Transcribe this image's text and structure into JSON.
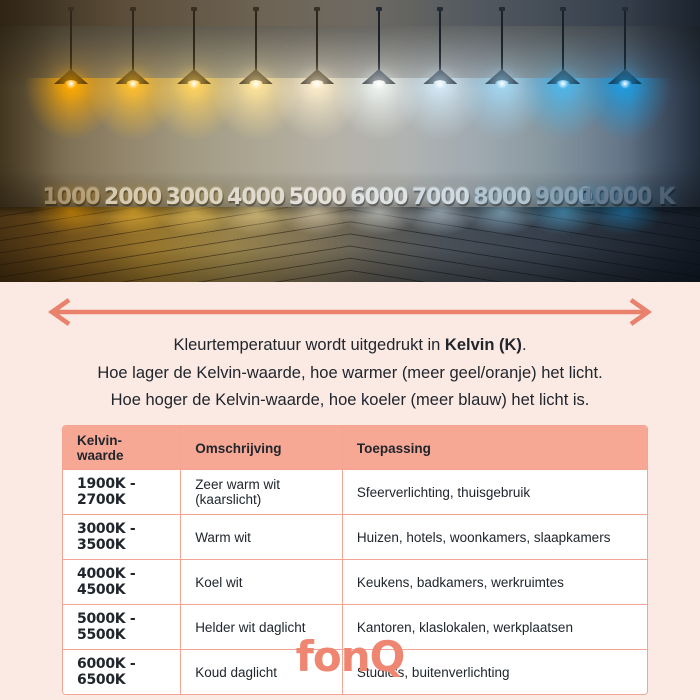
{
  "colors": {
    "background_pink": "#fbe9e4",
    "coral": "#e9816c",
    "salmon_header": "#f6a895",
    "table_border": "#f3a492",
    "text_dark": "#20262c",
    "logo_coral": "#ee8672"
  },
  "photo": {
    "lamps": [
      {
        "label": "1000",
        "glow": "#ffaa00",
        "number_color": "#b9a47e"
      },
      {
        "label": "2000",
        "glow": "#ffbf2e",
        "number_color": "#d6cbb1"
      },
      {
        "label": "3000",
        "glow": "#ffd35e",
        "number_color": "#dcd4c0"
      },
      {
        "label": "4000",
        "glow": "#ffe49a",
        "number_color": "#e0dbce"
      },
      {
        "label": "5000",
        "glow": "#fcedcb",
        "number_color": "#e4e1d9"
      },
      {
        "label": "6000",
        "glow": "#eef3ef",
        "number_color": "#e0e3e4"
      },
      {
        "label": "7000",
        "glow": "#d2e8f5",
        "number_color": "#d0dae1"
      },
      {
        "label": "8000",
        "glow": "#a2d6f1",
        "number_color": "#b4c5d2"
      },
      {
        "label": "9000",
        "glow": "#4fb7ea",
        "number_color": "#8ba1b4"
      },
      {
        "label": "10000 K",
        "glow": "#1f9ce0",
        "number_color": "#6a8095"
      }
    ]
  },
  "intro": {
    "line1_prefix": "Kleurtemperatuur wordt uitgedrukt in ",
    "line1_bold": "Kelvin (K)",
    "line1_suffix": ".",
    "line2": "Hoe lager de Kelvin-waarde, hoe warmer (meer geel/oranje) het licht.",
    "line3": "Hoe hoger de Kelvin-waarde, hoe koeler (meer blauw) het licht is."
  },
  "table": {
    "headers": [
      "Kelvin-waarde",
      "Omschrijving",
      "Toepassing"
    ],
    "rows": [
      [
        "1900K - 2700K",
        "Zeer warm wit (kaarslicht)",
        "Sfeerverlichting, thuisgebruik"
      ],
      [
        "3000K - 3500K",
        "Warm wit",
        "Huizen, hotels, woonkamers, slaapkamers"
      ],
      [
        "4000K - 4500K",
        "Koel wit",
        "Keukens, badkamers, werkruimtes"
      ],
      [
        "5000K - 5500K",
        "Helder wit daglicht",
        "Kantoren, klaslokalen, werkplaatsen"
      ],
      [
        "6000K - 6500K",
        "Koud daglicht",
        "Studio's, buitenverlichting"
      ]
    ]
  },
  "footer": {
    "logo_text": "fonQ"
  }
}
